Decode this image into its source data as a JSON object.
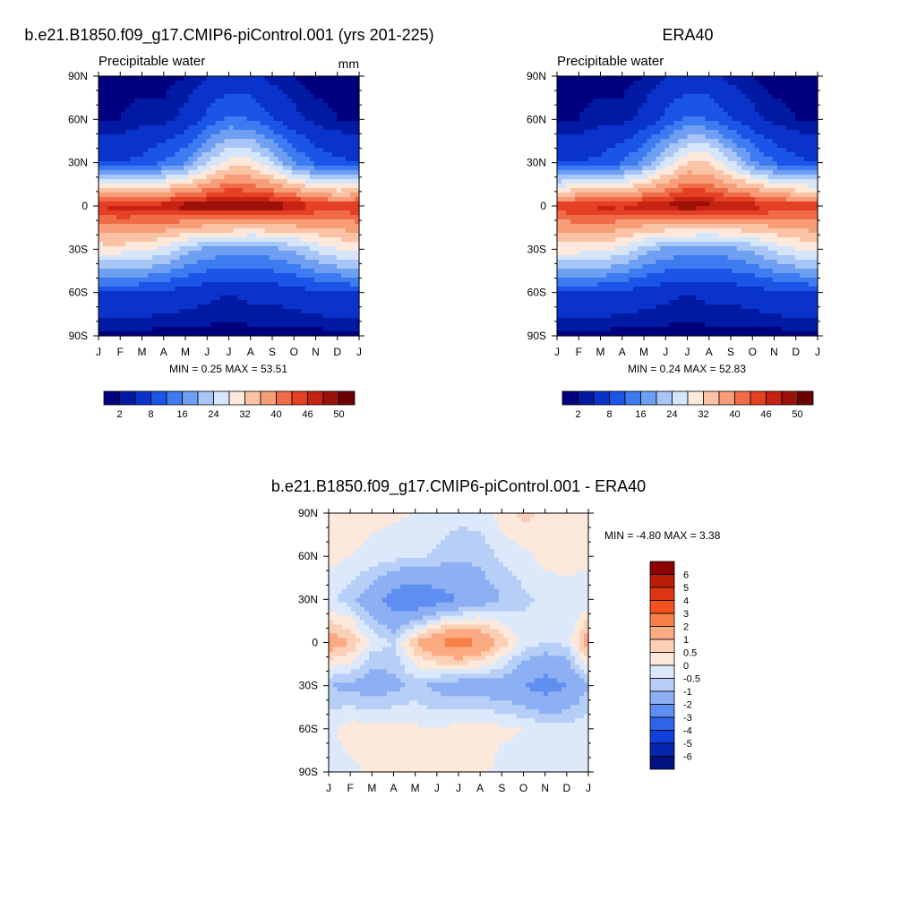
{
  "figure": {
    "panels": [
      {
        "id": "model",
        "title": "b.e21.B1850.f09_g17.CMIP6-piControl.001 (yrs 201-225)",
        "left_label": "Precipitable water",
        "units": "mm",
        "stats": "MIN =   0.25 MAX =  53.51",
        "field_key": "model"
      },
      {
        "id": "obs",
        "title": "ERA40",
        "left_label": "Precipitable water",
        "units": "",
        "stats": "MIN =   0.24 MAX =  52.83",
        "field_key": "obs"
      },
      {
        "id": "diff",
        "title": "b.e21.B1850.f09_g17.CMIP6-piControl.001 - ERA40",
        "left_label": "",
        "units": "",
        "stats": "MIN =  -4.80 MAX =   3.38",
        "field_key": "diff"
      }
    ],
    "x_ticks": [
      "J",
      "F",
      "M",
      "A",
      "M",
      "J",
      "J",
      "A",
      "S",
      "O",
      "N",
      "D",
      "J"
    ],
    "y_ticks": [
      "90N",
      "60N",
      "30N",
      "0",
      "30S",
      "60S",
      "90S"
    ],
    "main_colorbar": {
      "colors": [
        "#00007f",
        "#001aa3",
        "#0a33cc",
        "#1a55e8",
        "#3d7bf0",
        "#6f9ff2",
        "#a7c5f5",
        "#d6e6fa",
        "#fde8dc",
        "#fbc3a5",
        "#f79d78",
        "#f06c48",
        "#e54023",
        "#c62312",
        "#9b1008",
        "#6b0000"
      ],
      "labels": [
        "2",
        "8",
        "16",
        "24",
        "32",
        "40",
        "46",
        "50"
      ]
    },
    "diff_colorbar": {
      "colors": [
        "#8b0000",
        "#b81d08",
        "#dd3512",
        "#f4521f",
        "#f88048",
        "#fbaa82",
        "#fcd0b4",
        "#fde8dc",
        "#dce9fa",
        "#b7cff7",
        "#8cb0f3",
        "#5d8ef0",
        "#2f64ea",
        "#113fd9",
        "#0526ad",
        "#00127e"
      ],
      "labels": [
        "6",
        "5",
        "4",
        "3",
        "2",
        "1",
        "0.5",
        "0",
        "-0.5",
        "-1",
        "-2",
        "-3",
        "-4",
        "-5",
        "-6"
      ]
    }
  },
  "chart_data": [
    {
      "type": "heatmap",
      "title": "b.e21.B1850.f09_g17.CMIP6-piControl.001 (yrs 201-225)",
      "variable": "Precipitable water",
      "units": "mm",
      "x": [
        "J",
        "F",
        "M",
        "A",
        "M",
        "J",
        "J",
        "A",
        "S",
        "O",
        "N",
        "D",
        "J"
      ],
      "y": [
        "90N",
        "60N",
        "30N",
        "0",
        "30S",
        "60S",
        "90S"
      ],
      "z_mm_at_month_by_lat": [
        [
          1,
          1,
          1,
          1,
          2,
          4,
          5,
          5,
          3,
          2,
          1,
          1,
          1
        ],
        [
          2,
          2,
          3,
          3,
          5,
          9,
          13,
          12,
          8,
          5,
          3,
          2,
          2
        ],
        [
          8,
          8,
          9,
          12,
          16,
          24,
          30,
          30,
          24,
          16,
          11,
          9,
          8
        ],
        [
          46,
          48,
          47,
          48,
          50,
          50,
          51,
          50,
          50,
          49,
          46,
          45,
          46
        ],
        [
          30,
          30,
          29,
          27,
          22,
          19,
          18,
          17,
          19,
          21,
          25,
          28,
          30
        ],
        [
          8,
          8,
          8,
          7,
          6,
          5,
          4,
          5,
          5,
          6,
          7,
          8,
          8
        ],
        [
          1,
          1,
          1,
          1,
          1,
          1,
          1,
          1,
          1,
          1,
          1,
          1,
          1
        ]
      ],
      "min": 0.25,
      "max": 53.51,
      "colorbar_labels": [
        "2",
        "8",
        "16",
        "24",
        "32",
        "40",
        "46",
        "50"
      ]
    },
    {
      "type": "heatmap",
      "title": "ERA40",
      "variable": "Precipitable water",
      "x": [
        "J",
        "F",
        "M",
        "A",
        "M",
        "J",
        "J",
        "A",
        "S",
        "O",
        "N",
        "D",
        "J"
      ],
      "y": [
        "90N",
        "60N",
        "30N",
        "0",
        "30S",
        "60S",
        "90S"
      ],
      "z_mm_at_month_by_lat": [
        [
          1,
          1,
          1,
          1,
          2,
          4,
          5,
          5,
          3,
          2,
          1,
          1,
          1
        ],
        [
          2,
          2,
          3,
          3,
          5,
          9,
          13,
          12,
          8,
          5,
          3,
          2,
          2
        ],
        [
          8,
          8,
          9,
          12,
          17,
          25,
          32,
          32,
          25,
          17,
          12,
          9,
          8
        ],
        [
          45,
          46,
          47,
          47,
          48,
          49,
          50,
          49,
          48,
          48,
          46,
          45,
          45
        ],
        [
          30,
          30,
          29,
          27,
          22,
          19,
          18,
          17,
          19,
          21,
          25,
          28,
          30
        ],
        [
          8,
          8,
          8,
          7,
          6,
          5,
          4,
          5,
          5,
          6,
          7,
          8,
          8
        ],
        [
          1,
          1,
          1,
          1,
          1,
          1,
          1,
          1,
          1,
          1,
          1,
          1,
          1
        ]
      ],
      "min": 0.24,
      "max": 52.83,
      "colorbar_labels": [
        "2",
        "8",
        "16",
        "24",
        "32",
        "40",
        "46",
        "50"
      ]
    },
    {
      "type": "heatmap",
      "title": "b.e21.B1850.f09_g17.CMIP6-piControl.001 - ERA40",
      "x": [
        "J",
        "F",
        "M",
        "A",
        "M",
        "J",
        "J",
        "A",
        "S",
        "O",
        "N",
        "D",
        "J"
      ],
      "y": [
        "90N",
        "60N",
        "30N",
        "0",
        "30S",
        "60S",
        "90S"
      ],
      "z_mm_at_month_by_lat": [
        [
          0.3,
          0.3,
          0.2,
          0.1,
          0.0,
          -0.2,
          -0.3,
          -0.3,
          0.3,
          0.7,
          0.3,
          0.2,
          0.3
        ],
        [
          0.2,
          0.0,
          -0.2,
          -0.3,
          -0.4,
          -0.6,
          -0.9,
          -0.8,
          -0.4,
          -0.2,
          0.2,
          0.3,
          0.2
        ],
        [
          -0.4,
          -0.8,
          -1.5,
          -2.5,
          -3,
          -2.5,
          -2,
          -1.5,
          -1,
          -0.6,
          -0.4,
          -0.4,
          -0.4
        ],
        [
          1.5,
          1,
          -0.2,
          -0.5,
          1,
          2,
          2.5,
          2,
          0.8,
          -0.2,
          -0.5,
          -0.4,
          1.5
        ],
        [
          -1,
          -1.2,
          -1.5,
          -1.2,
          -0.8,
          -1.2,
          -1.5,
          -1.5,
          -1.5,
          -2,
          -2.5,
          -2,
          -1
        ],
        [
          -0.2,
          0.3,
          0.3,
          0.2,
          0.1,
          0.0,
          0.2,
          0.3,
          0.1,
          0.0,
          -0.2,
          -0.3,
          -0.2
        ],
        [
          -0.2,
          -0.2,
          0.2,
          0.2,
          0.2,
          0.0,
          0.1,
          0.2,
          -0.2,
          -0.2,
          -0.2,
          -0.2,
          -0.2
        ]
      ],
      "min": -4.8,
      "max": 3.38,
      "colorbar_labels": [
        "6",
        "5",
        "4",
        "3",
        "2",
        "1",
        "0.5",
        "0",
        "-0.5",
        "-1",
        "-2",
        "-3",
        "-4",
        "-5",
        "-6"
      ]
    }
  ]
}
